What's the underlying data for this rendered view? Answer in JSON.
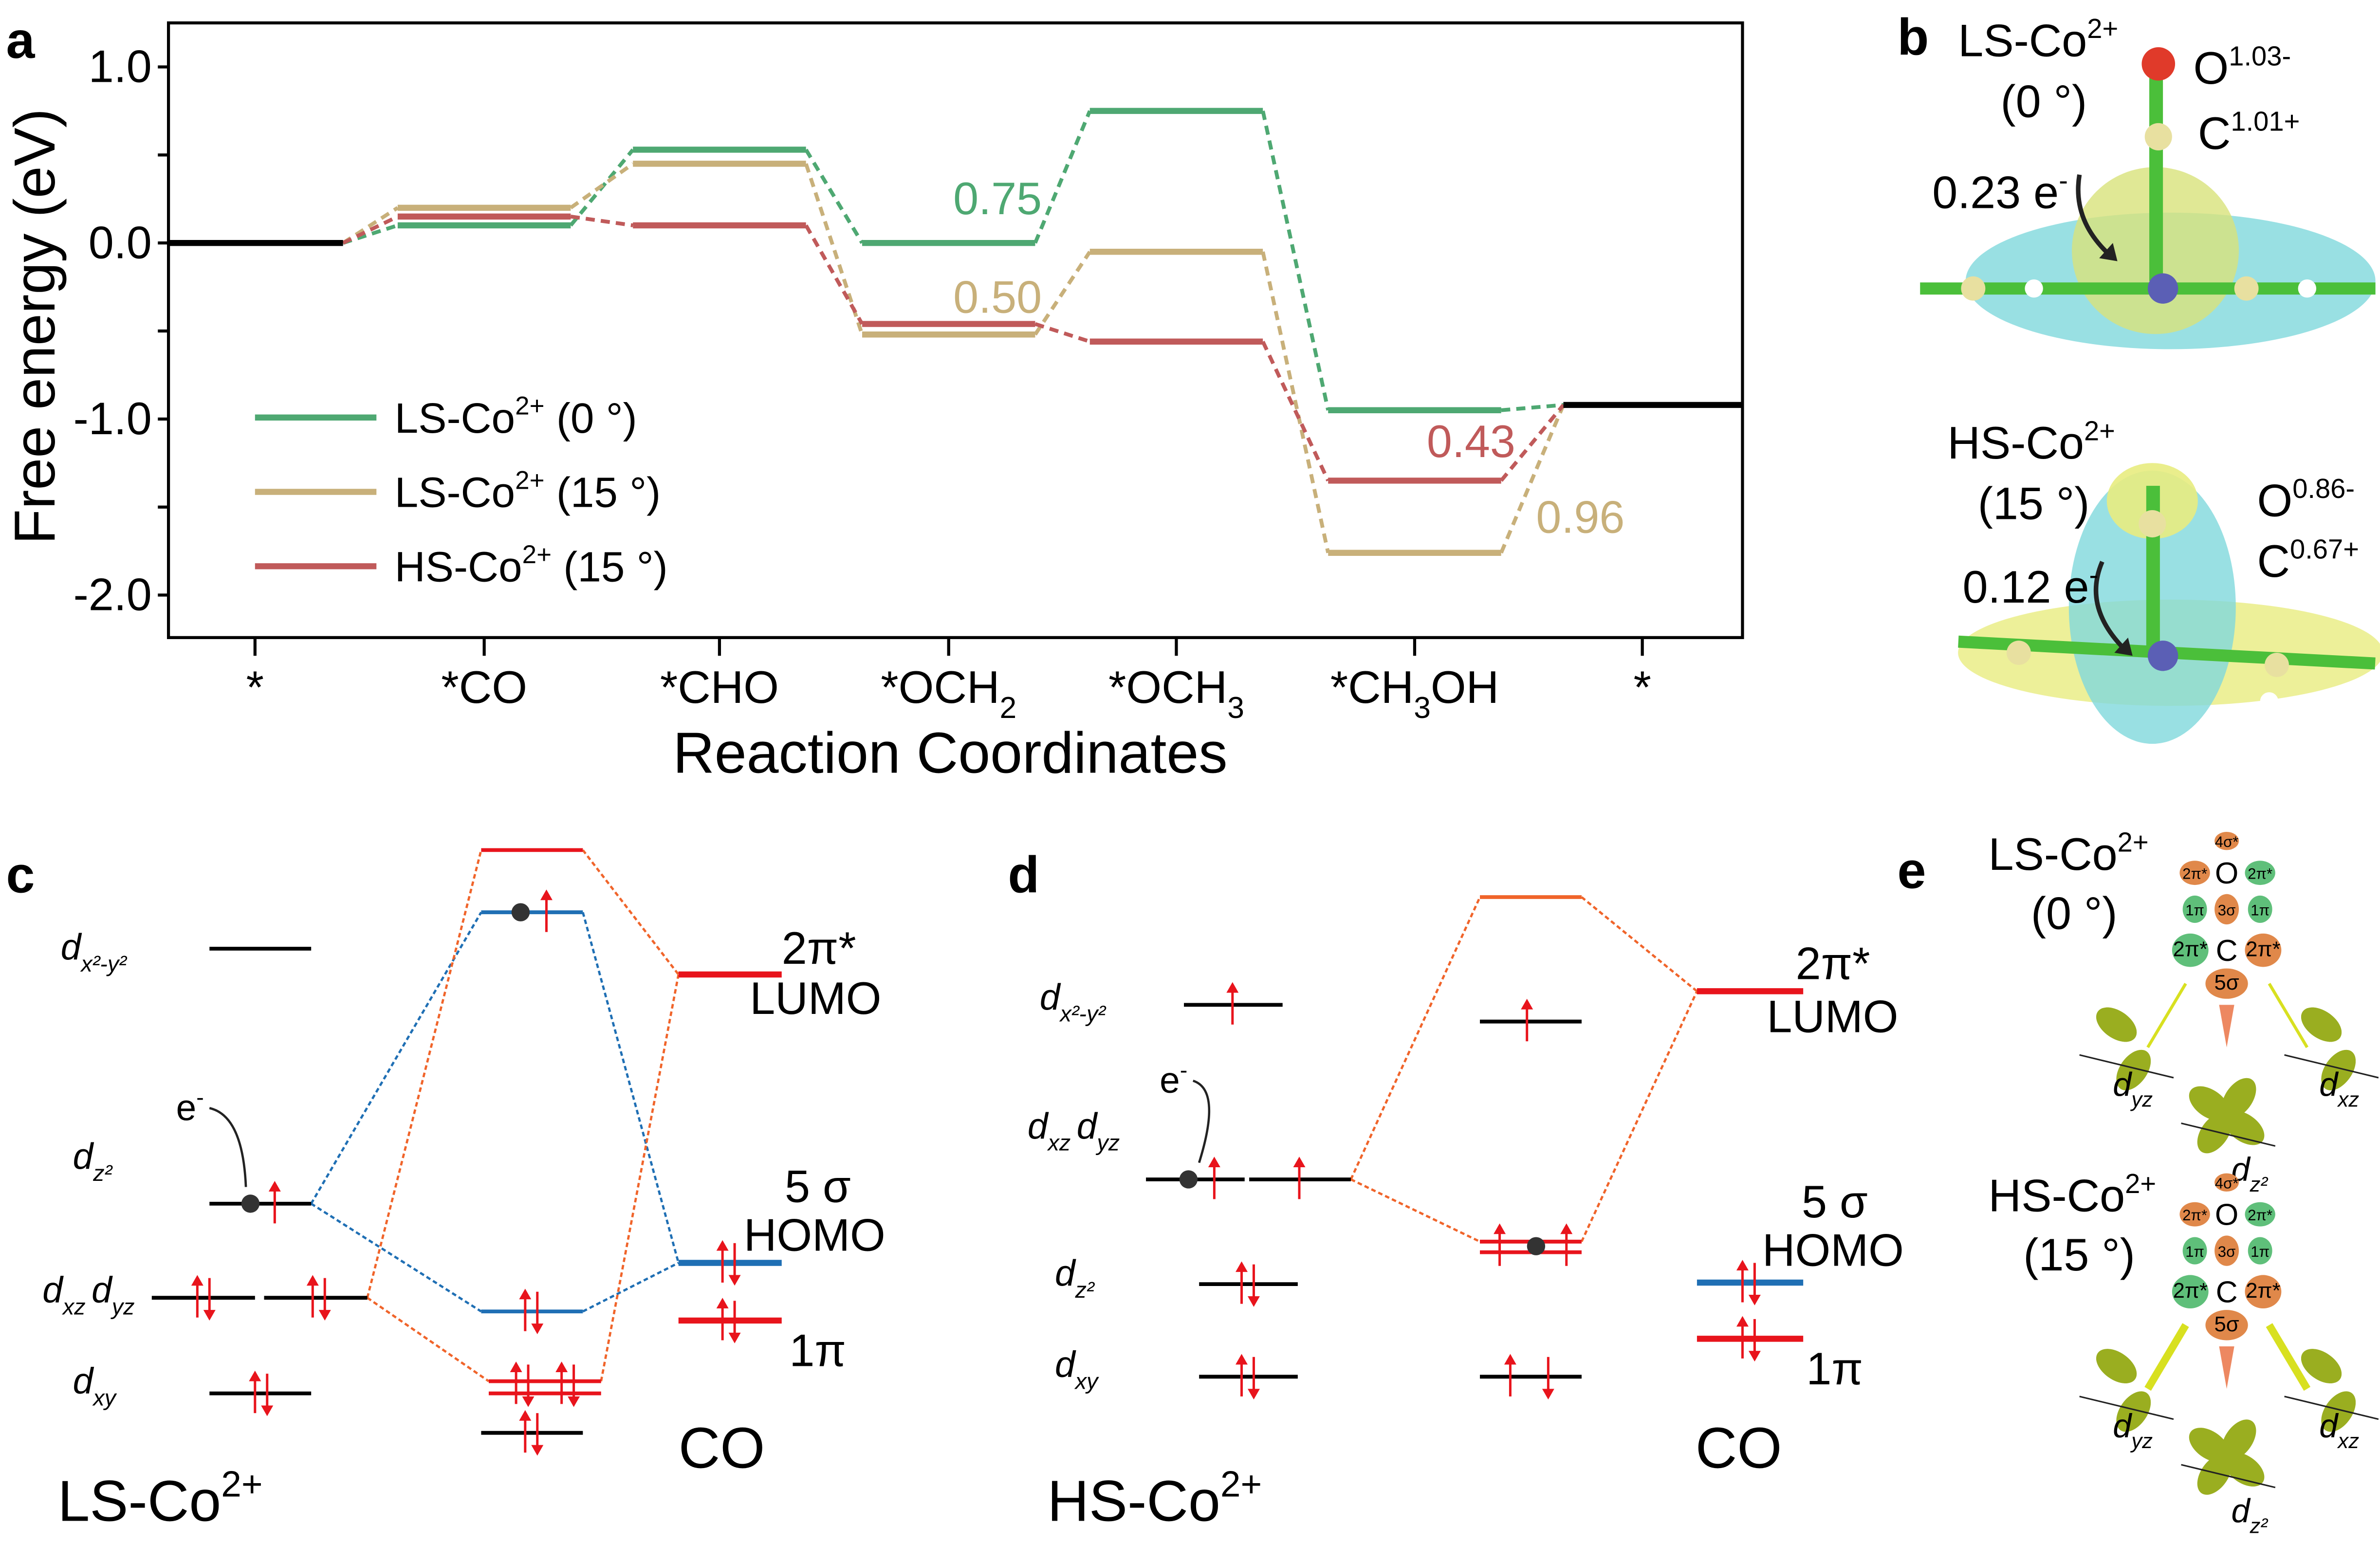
{
  "panel_labels": {
    "a": "a",
    "b": "b",
    "c": "c",
    "d": "d",
    "e": "e"
  },
  "chart_data": {
    "type": "line",
    "subtype": "free-energy-step-diagram",
    "xlabel": "Reaction Coordinates",
    "ylabel": "Free energy (eV)",
    "categories": [
      "*",
      "*CO",
      "*CHO",
      "*OCH2",
      "*OCH3",
      "*CH3OH",
      "*"
    ],
    "ylim": [
      -2.25,
      1.25
    ],
    "yticks": [
      1.0,
      0.0,
      -1.0,
      -2.0
    ],
    "ytick_labels": [
      "1.0",
      "0.0",
      "-1.0",
      "-2.0"
    ],
    "grid": false,
    "legend_placement": "bottom-left",
    "reference_color": "#000000",
    "series": [
      {
        "name": "LS-Co",
        "name_sup": "2+",
        "name_suffix": " (0 °)",
        "color": "#4ea872",
        "values": [
          0.0,
          0.1,
          0.53,
          0.0,
          0.75,
          -0.95,
          -0.92
        ]
      },
      {
        "name": "LS-Co",
        "name_sup": "2+",
        "name_suffix": " (15 °)",
        "color": "#c8b07a",
        "values": [
          0.0,
          0.2,
          0.45,
          -0.52,
          -0.05,
          -1.76,
          -0.92
        ]
      },
      {
        "name": "HS-Co",
        "name_sup": "2+",
        "name_suffix": " (15 °)",
        "color": "#c05a5a",
        "values": [
          0.0,
          0.15,
          0.1,
          -0.46,
          -0.56,
          -1.35,
          -0.92
        ]
      }
    ],
    "annotations": [
      {
        "text": "0.75",
        "series": 0
      },
      {
        "text": "0.50",
        "series": 1
      },
      {
        "text": "0.43",
        "series": 2
      },
      {
        "text": "0.96",
        "series": 1
      }
    ]
  },
  "panel_b": {
    "ls": {
      "title": "LS-Co",
      "sup": "2+",
      "angle": "(0 °)",
      "o": "O",
      "o_charge": "1.03-",
      "c": "C",
      "c_charge": "1.01+",
      "transfer": "0.23 e",
      "transfer_sup": "-"
    },
    "hs": {
      "title": "HS-Co",
      "sup": "2+",
      "angle": "(15 °)",
      "o": "O",
      "o_charge": "0.86-",
      "c": "C",
      "c_charge": "0.67+",
      "transfer": "0.12 e",
      "transfer_sup": "-"
    }
  },
  "panel_c": {
    "title": "LS-Co",
    "title_sup": "2+",
    "d": "d",
    "x2y2": "x²-y²",
    "z2": "z²",
    "xz": "xz",
    "yz": "yz",
    "xy": "xy",
    "electron": "e",
    "electron_sup": "-",
    "pi2": "2π*",
    "lumo": "LUMO",
    "s5": "5 σ",
    "homo": "HOMO",
    "pi1": "1π",
    "co": "CO"
  },
  "panel_d": {
    "title": "HS-Co",
    "title_sup": "2+",
    "d": "d",
    "x2y2": "x²-y²",
    "z2": "z²",
    "xz": "xz",
    "yz": "yz",
    "xy": "xy",
    "electron": "e",
    "electron_sup": "-",
    "pi2": "2π*",
    "lumo": "LUMO",
    "s5": "5 σ",
    "homo": "HOMO",
    "pi1": "1π",
    "co": "CO"
  },
  "panel_e": {
    "ls": {
      "title": "LS-Co",
      "sup": "2+",
      "angle": "(0 °)"
    },
    "hs": {
      "title": "HS-Co",
      "sup": "2+",
      "angle": "(15 °)"
    },
    "mo": {
      "o": "O",
      "c": "C",
      "s4": "4σ*",
      "p2": "2π*",
      "p1": "1π",
      "s3": "3σ",
      "s5": "5σ"
    },
    "dl": {
      "d": "d",
      "yz": "yz",
      "z2": "z²",
      "xz": "xz"
    }
  }
}
